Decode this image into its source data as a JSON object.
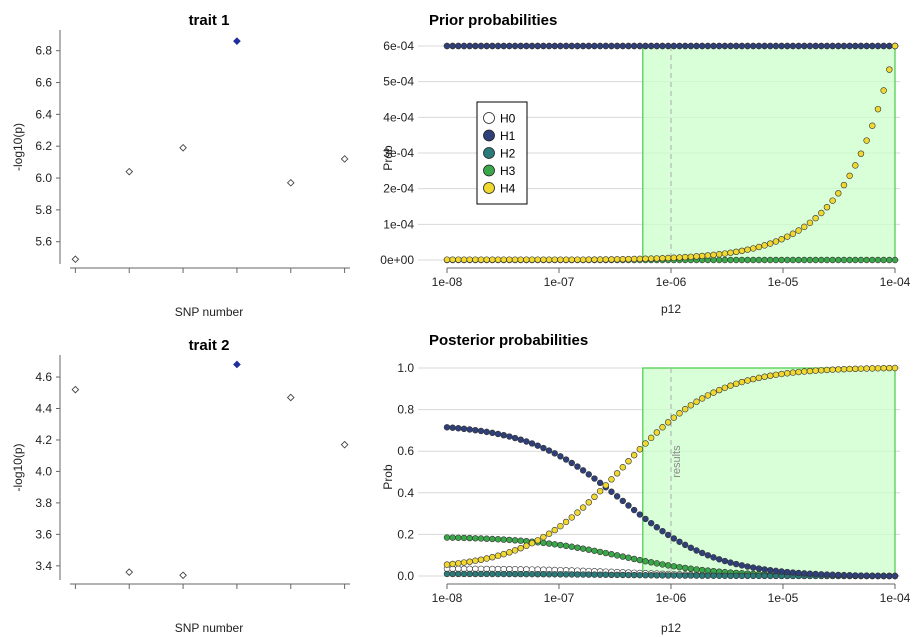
{
  "chart_data": [
    {
      "id": "trait1",
      "type": "scatter",
      "title": "trait 1",
      "xlabel": "SNP number",
      "ylabel": "-log10(p)",
      "x": [
        1,
        2,
        3,
        4,
        5,
        6
      ],
      "y": [
        5.49,
        6.04,
        6.19,
        6.86,
        5.97,
        6.12
      ],
      "highlight_index": 3,
      "xlim": [
        0.9,
        6.1
      ],
      "ylim": [
        5.46,
        6.93
      ],
      "yticks": [
        5.6,
        5.8,
        6.0,
        6.2,
        6.4,
        6.6,
        6.8
      ],
      "ytick_labels": [
        "5.6",
        "5.8",
        "6.0",
        "6.2",
        "6.4",
        "6.6",
        "6.8"
      ],
      "point_color": "#ffffff",
      "highlight_color": "#1f2f9e"
    },
    {
      "id": "trait2",
      "type": "scatter",
      "title": "trait 2",
      "xlabel": "SNP number",
      "ylabel": "-log10(p)",
      "x": [
        1,
        2,
        3,
        4,
        5,
        6
      ],
      "y": [
        4.52,
        3.36,
        3.34,
        4.68,
        4.47,
        4.17
      ],
      "highlight_index": 3,
      "xlim": [
        0.9,
        6.1
      ],
      "ylim": [
        3.31,
        4.74
      ],
      "yticks": [
        3.4,
        3.6,
        3.8,
        4.0,
        4.2,
        4.4,
        4.6
      ],
      "ytick_labels": [
        "3.4",
        "3.6",
        "3.8",
        "4.0",
        "4.2",
        "4.4",
        "4.6"
      ],
      "point_color": "#ffffff",
      "highlight_color": "#1f2f9e"
    },
    {
      "id": "prior",
      "type": "scatter",
      "title": "Prior probabilities",
      "xlabel": "p12",
      "ylabel": "Prob",
      "x_scale": "log",
      "x_range": [
        1e-08,
        0.0001
      ],
      "xlim": [
        1e-08,
        0.0001
      ],
      "ylim": [
        0,
        0.0006
      ],
      "xticks": [
        1e-08,
        1e-07,
        1e-06,
        1e-05,
        0.0001
      ],
      "xtick_labels": [
        "1e-08",
        "1e-07",
        "1e-06",
        "1e-05",
        "1e-04"
      ],
      "yticks": [
        0,
        0.0001,
        0.0002,
        0.0003,
        0.0004,
        0.0005,
        0.0006
      ],
      "ytick_labels": [
        "0e+00",
        "1e-04",
        "2e-04",
        "3e-04",
        "4e-04",
        "5e-04",
        "6e-04"
      ],
      "grid": true,
      "legend": {
        "placement": "left",
        "entries": [
          "H0",
          "H1",
          "H2",
          "H3",
          "H4"
        ]
      },
      "region": {
        "from": 5.6e-07,
        "to": 0.0001,
        "color": "#ccffcc"
      },
      "marker_line": {
        "x": 1e-06
      },
      "series": [
        {
          "name": "H0",
          "color": "#ffffff",
          "formula": "none",
          "values_at_ends": [
            0,
            0
          ]
        },
        {
          "name": "H1",
          "color": "#2e3f7a",
          "formula": "constant",
          "values_at_ends": [
            0.0006,
            0.0006
          ]
        },
        {
          "name": "H2",
          "color": "#2a7a7a",
          "formula": "constant",
          "values_at_ends": [
            0.0006,
            0.0006
          ]
        },
        {
          "name": "H3",
          "color": "#3aa84a",
          "formula": "constant",
          "values_at_ends": [
            0,
            0
          ]
        },
        {
          "name": "H4",
          "color": "#f0d830",
          "formula": "linear",
          "values_at_ends": [
            1e-06,
            0.0006
          ]
        }
      ]
    },
    {
      "id": "posterior",
      "type": "scatter",
      "title": "Posterior probabilities",
      "xlabel": "p12",
      "ylabel": "Prob",
      "x_scale": "log",
      "x_range": [
        1e-08,
        0.0001
      ],
      "xlim": [
        1e-08,
        0.0001
      ],
      "ylim": [
        0,
        1
      ],
      "xticks": [
        1e-08,
        1e-07,
        1e-06,
        1e-05,
        0.0001
      ],
      "xtick_labels": [
        "1e-08",
        "1e-07",
        "1e-06",
        "1e-05",
        "1e-04"
      ],
      "yticks": [
        0,
        0.2,
        0.4,
        0.6,
        0.8,
        1.0
      ],
      "ytick_labels": [
        "0.0",
        "0.2",
        "0.4",
        "0.6",
        "0.8",
        "1.0"
      ],
      "grid": true,
      "region": {
        "from": 5.6e-07,
        "to": 0.0001,
        "color": "#ccffcc"
      },
      "marker_line": {
        "x": 1e-06,
        "label": "results"
      },
      "series": [
        {
          "name": "H0",
          "color": "#ffffff",
          "values_at_ends": [
            0.035,
            0.0
          ]
        },
        {
          "name": "H1",
          "color": "#2e3f7a",
          "values_at_ends": [
            0.715,
            0.0
          ]
        },
        {
          "name": "H2",
          "color": "#2a7a7a",
          "values_at_ends": [
            0.01,
            0.0
          ]
        },
        {
          "name": "H3",
          "color": "#3aa84a",
          "values_at_ends": [
            0.185,
            0.0
          ]
        },
        {
          "name": "H4",
          "color": "#f0d830",
          "values_at_ends": [
            0.055,
            1.0
          ]
        }
      ]
    }
  ]
}
